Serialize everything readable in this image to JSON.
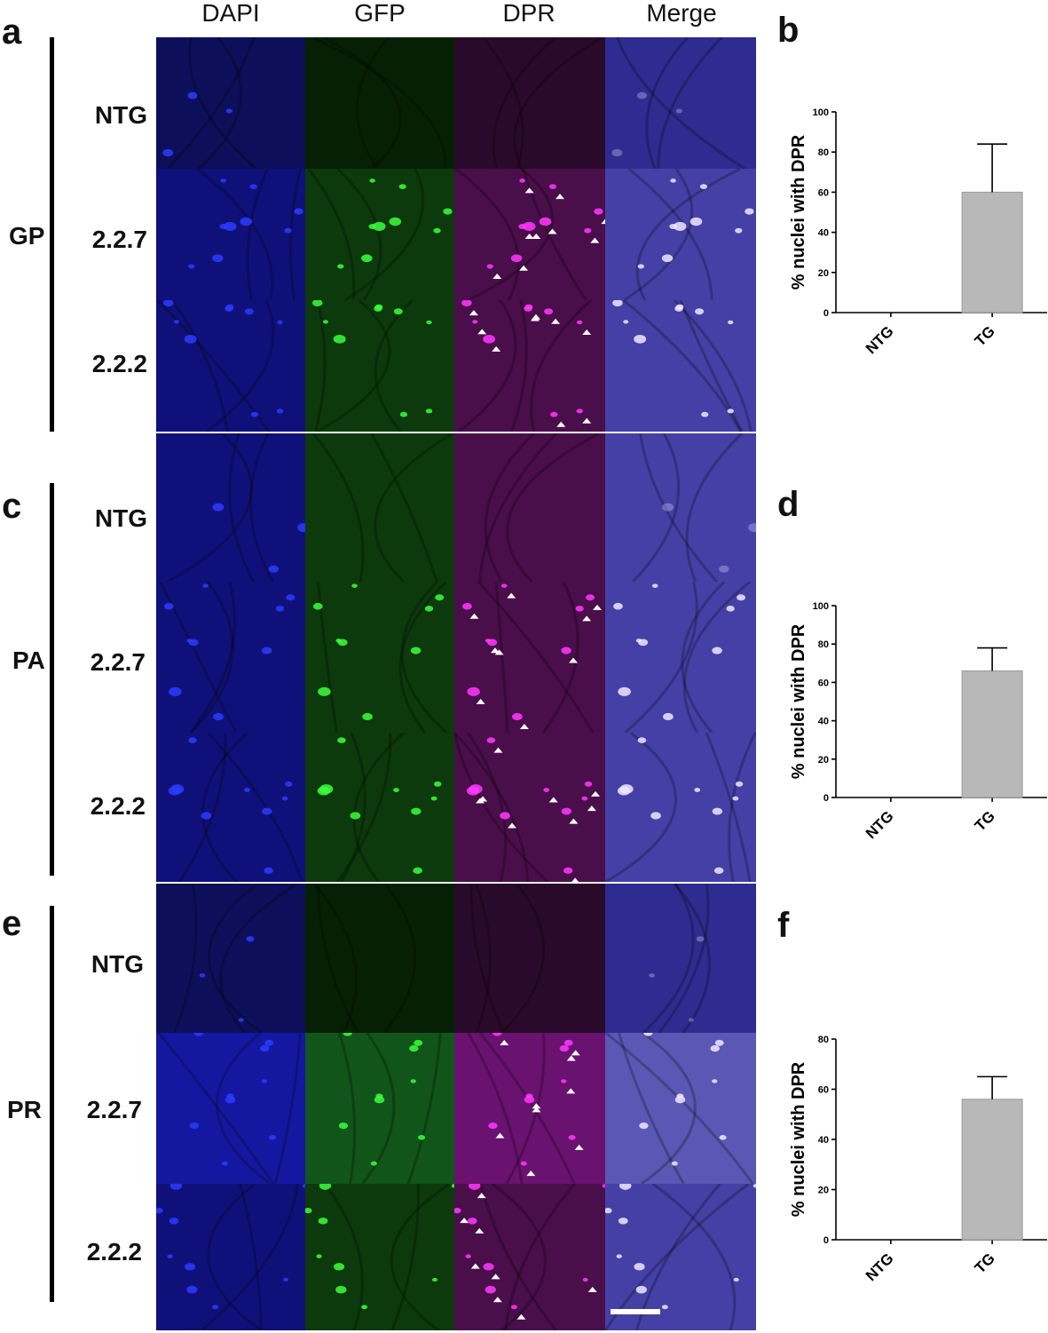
{
  "columns": [
    "DAPI",
    "GFP",
    "DPR",
    "Merge"
  ],
  "panel_letters": {
    "a": "a",
    "b": "b",
    "c": "c",
    "d": "d",
    "e": "e",
    "f": "f"
  },
  "groups": [
    {
      "label": "GP",
      "rows": [
        "NTG",
        "2.2.7",
        "2.2.2"
      ]
    },
    {
      "label": "PA",
      "rows": [
        "NTG",
        "2.2.7",
        "2.2.2"
      ]
    },
    {
      "label": "PR",
      "rows": [
        "NTG",
        "2.2.7",
        "2.2.2"
      ]
    }
  ],
  "channel_colors": {
    "DAPI": "#1a1ad6",
    "GFP": "#1fd21f",
    "DPR": "#e01ee0",
    "Merge": "#6a5ae8"
  },
  "chart_data": [
    {
      "type": "bar",
      "panel": "b",
      "categories": [
        "NTG",
        "TG"
      ],
      "values": [
        0,
        60
      ],
      "error": [
        0,
        24
      ],
      "ylabel": "% nuclei with DPR",
      "ylim": [
        0,
        100
      ],
      "yticks": [
        0,
        20,
        40,
        60,
        80,
        100
      ]
    },
    {
      "type": "bar",
      "panel": "d",
      "categories": [
        "NTG",
        "TG"
      ],
      "values": [
        0,
        66
      ],
      "error": [
        0,
        12
      ],
      "ylabel": "% nuclei with DPR",
      "ylim": [
        0,
        100
      ],
      "yticks": [
        0,
        20,
        40,
        60,
        80,
        100
      ]
    },
    {
      "type": "bar",
      "panel": "f",
      "categories": [
        "NTG",
        "TG"
      ],
      "values": [
        0,
        56
      ],
      "error": [
        0,
        9
      ],
      "ylabel": "% nuclei with DPR",
      "ylim": [
        0,
        80
      ],
      "yticks": [
        0,
        20,
        40,
        60,
        80
      ]
    }
  ]
}
